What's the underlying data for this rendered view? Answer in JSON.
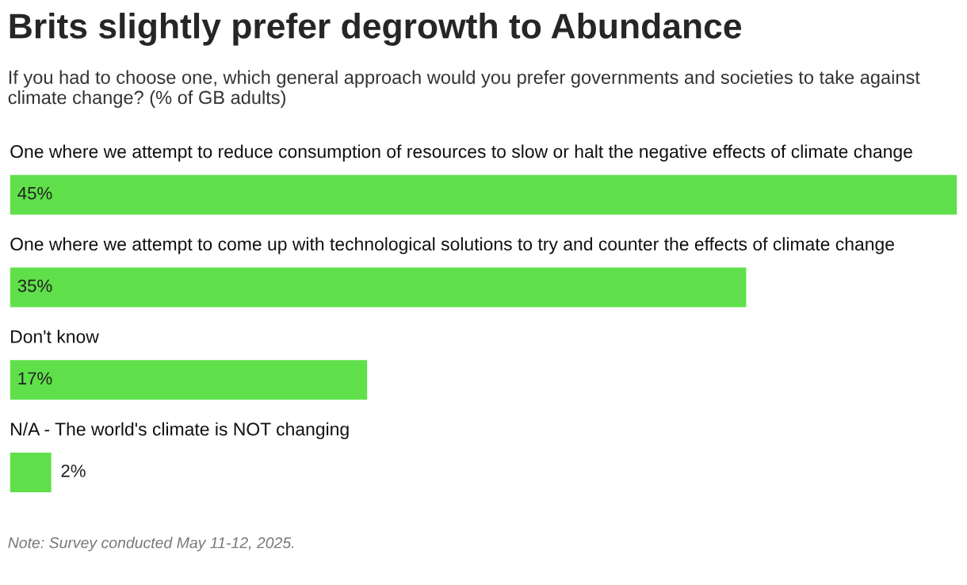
{
  "chart_data": {
    "type": "bar",
    "orientation": "horizontal",
    "title": "Brits slightly prefer degrowth to Abundance",
    "subtitle": "If you had to choose one, which general approach would you prefer governments and societies to take against climate change? (% of GB adults)",
    "categories": [
      "One where we attempt to reduce consumption of resources to slow or halt the negative effects of climate change",
      "One where we attempt to come up with technological solutions to try and counter the effects of climate change",
      "Don't know",
      "N/A - The world's climate is NOT changing"
    ],
    "values": [
      45,
      35,
      17,
      2
    ],
    "value_labels": [
      "45%",
      "35%",
      "17%",
      "2%"
    ],
    "color": "#5fe04a",
    "xlim": [
      0,
      45
    ],
    "tick_labels": false,
    "annotations": [
      "Note: Survey conducted May 11-12, 2025."
    ]
  }
}
